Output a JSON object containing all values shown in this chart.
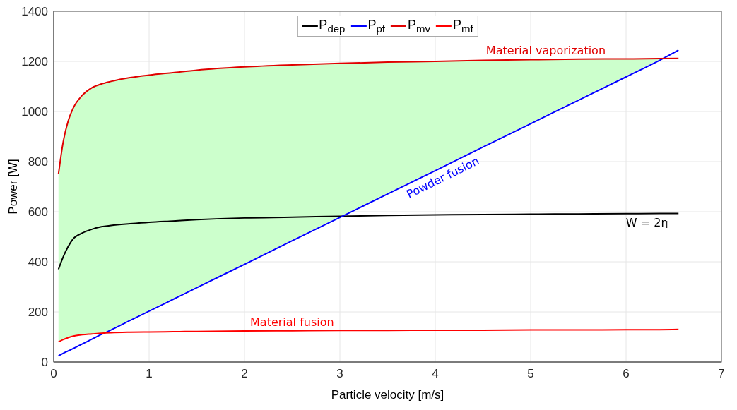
{
  "chart_data": {
    "type": "line",
    "xlabel": "Particle velocity [m/s]",
    "ylabel": "Power [W]",
    "x": [
      0.05,
      0.1,
      0.15,
      0.2,
      0.3,
      0.4,
      0.5,
      0.6,
      0.8,
      1,
      1.25,
      1.5,
      2,
      2.5,
      3,
      3.5,
      4,
      4.5,
      5,
      5.5,
      6,
      6.35,
      6.55
    ],
    "series": [
      {
        "name": "P$_{dep}$",
        "color": "#000000",
        "values": [
          370,
          420,
          460,
          490,
          515,
          530,
          540,
          545,
          552,
          558,
          563,
          568,
          575,
          578,
          582,
          585,
          587,
          589,
          590,
          591,
          592,
          593,
          593
        ]
      },
      {
        "name": "P$_{pf}$",
        "color": "#0000ff",
        "values": [
          25,
          35,
          44,
          53,
          72,
          91,
          110,
          128,
          166,
          203,
          250,
          297,
          390,
          484,
          577,
          671,
          764,
          858,
          951,
          1045,
          1138,
          1204,
          1245
        ]
      },
      {
        "name": "P$_{mv}$",
        "color": "#e00000",
        "values": [
          750,
          880,
          960,
          1010,
          1065,
          1095,
          1110,
          1120,
          1135,
          1145,
          1155,
          1165,
          1178,
          1186,
          1192,
          1197,
          1200,
          1204,
          1207,
          1209,
          1210,
          1211,
          1212
        ],
        "lower": [
          80,
          90,
          97,
          103,
          109,
          112,
          115,
          132,
          170,
          207,
          254,
          301,
          394,
          488,
          581,
          675,
          768,
          862,
          955,
          1049,
          1142,
          1207,
          null
        ],
        "upper": [
          750,
          880,
          960,
          1010,
          1065,
          1095,
          1110,
          1120,
          1135,
          1145,
          1155,
          1165,
          1178,
          1186,
          1192,
          1197,
          1200,
          1204,
          1207,
          1209,
          1210,
          1211,
          null
        ]
      },
      {
        "name": "P$_{mf}$",
        "color": "#ff0000",
        "values": [
          80,
          90,
          97,
          103,
          109,
          112,
          115,
          117,
          119,
          120,
          121,
          122,
          124,
          125,
          126,
          126,
          127,
          127,
          128,
          128,
          129,
          129,
          130
        ]
      }
    ],
    "annotations": [
      "Material vaporization",
      "Powder fusion",
      "W = 2r$_{l}$",
      "Material fusion"
    ],
    "xlim": [
      0,
      7
    ],
    "xticks": [
      0,
      1,
      2,
      3,
      4,
      5,
      6,
      7
    ],
    "ylim": [
      0,
      1400
    ],
    "yticks": [
      0,
      200,
      400,
      600,
      800,
      1000,
      1200,
      1400
    ],
    "grid": true,
    "legend": "top",
    "marker": "none",
    "line_style": "solid"
  }
}
